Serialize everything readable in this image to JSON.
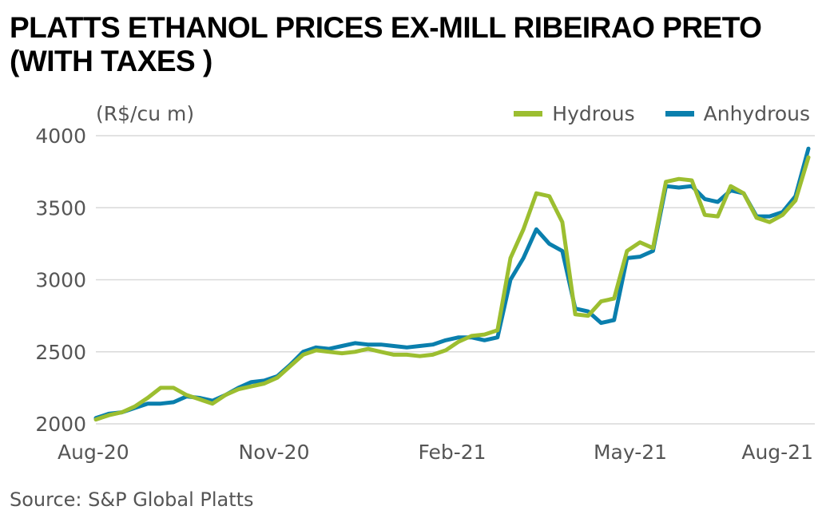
{
  "title": "PLATTS ETHANOL PRICES EX-MILL RIBEIRAO PRETO (WITH TAXES )",
  "unit_label": "(R$/cu m)",
  "source": "Source: S&P Global Platts",
  "colors": {
    "hydrous": "#9cbe30",
    "anhydrous": "#0a7fad",
    "grid": "#d9d9d9",
    "axis_text": "#555555"
  },
  "chart_data": {
    "type": "line",
    "title": "PLATTS ETHANOL PRICES EX-MILL RIBEIRAO PRETO (WITH TAXES )",
    "ylabel": "(R$/cu m)",
    "xlabel": "",
    "ylim": [
      2000,
      4000
    ],
    "yticks": [
      "4000",
      "3500",
      "3000",
      "2500",
      "2000"
    ],
    "xticks": [
      "Aug-20",
      "Nov-20",
      "Feb-21",
      "May-21",
      "Aug-21"
    ],
    "grid": true,
    "legend_position": "top-right",
    "series": [
      {
        "name": "Hydrous",
        "color": "#9cbe30",
        "x": [
          "Aug-20",
          "Aug-20",
          "Aug-20",
          "Aug-20",
          "Aug-20",
          "Sep-20",
          "Sep-20",
          "Sep-20",
          "Sep-20",
          "Oct-20",
          "Oct-20",
          "Oct-20",
          "Oct-20",
          "Oct-20",
          "Nov-20",
          "Nov-20",
          "Nov-20",
          "Nov-20",
          "Dec-20",
          "Dec-20",
          "Dec-20",
          "Dec-20",
          "Jan-21",
          "Jan-21",
          "Jan-21",
          "Jan-21",
          "Feb-21",
          "Feb-21",
          "Feb-21",
          "Feb-21",
          "Feb-21",
          "Mar-21",
          "Mar-21",
          "Mar-21",
          "Mar-21",
          "Apr-21",
          "Apr-21",
          "Apr-21",
          "Apr-21",
          "Apr-21",
          "May-21",
          "May-21",
          "May-21",
          "May-21",
          "Jun-21",
          "Jun-21",
          "Jun-21",
          "Jun-21",
          "Jul-21",
          "Jul-21",
          "Jul-21",
          "Jul-21",
          "Jul-21",
          "Aug-21",
          "Aug-21",
          "Aug-21"
        ],
        "values": [
          2030,
          2060,
          2080,
          2120,
          2180,
          2250,
          2250,
          2200,
          2170,
          2140,
          2200,
          2240,
          2260,
          2280,
          2320,
          2400,
          2480,
          2510,
          2500,
          2490,
          2500,
          2520,
          2500,
          2480,
          2480,
          2470,
          2480,
          2510,
          2570,
          2610,
          2620,
          2650,
          3150,
          3350,
          3600,
          3580,
          3400,
          2760,
          2750,
          2850,
          2870,
          3200,
          3260,
          3220,
          3680,
          3700,
          3690,
          3450,
          3440,
          3650,
          3600,
          3430,
          3400,
          3450,
          3550,
          3850
        ]
      },
      {
        "name": "Anhydrous",
        "color": "#0a7fad",
        "x": [
          "Aug-20",
          "Aug-20",
          "Aug-20",
          "Aug-20",
          "Aug-20",
          "Sep-20",
          "Sep-20",
          "Sep-20",
          "Sep-20",
          "Oct-20",
          "Oct-20",
          "Oct-20",
          "Oct-20",
          "Oct-20",
          "Nov-20",
          "Nov-20",
          "Nov-20",
          "Nov-20",
          "Dec-20",
          "Dec-20",
          "Dec-20",
          "Dec-20",
          "Jan-21",
          "Jan-21",
          "Jan-21",
          "Jan-21",
          "Feb-21",
          "Feb-21",
          "Feb-21",
          "Feb-21",
          "Feb-21",
          "Mar-21",
          "Mar-21",
          "Mar-21",
          "Mar-21",
          "Apr-21",
          "Apr-21",
          "Apr-21",
          "Apr-21",
          "Apr-21",
          "May-21",
          "May-21",
          "May-21",
          "May-21",
          "Jun-21",
          "Jun-21",
          "Jun-21",
          "Jun-21",
          "Jul-21",
          "Jul-21",
          "Jul-21",
          "Jul-21",
          "Jul-21",
          "Aug-21",
          "Aug-21",
          "Aug-21"
        ],
        "values": [
          2040,
          2070,
          2080,
          2110,
          2140,
          2140,
          2150,
          2190,
          2180,
          2160,
          2200,
          2250,
          2290,
          2300,
          2330,
          2410,
          2500,
          2530,
          2520,
          2540,
          2560,
          2550,
          2550,
          2540,
          2530,
          2540,
          2550,
          2580,
          2600,
          2600,
          2580,
          2600,
          3000,
          3150,
          3350,
          3250,
          3200,
          2800,
          2780,
          2700,
          2720,
          3150,
          3160,
          3200,
          3650,
          3640,
          3650,
          3560,
          3540,
          3620,
          3600,
          3440,
          3440,
          3470,
          3580,
          3910
        ]
      }
    ]
  }
}
